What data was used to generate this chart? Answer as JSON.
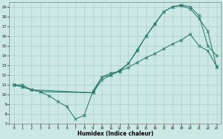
{
  "xlabel": "Humidex (Indice chaleur)",
  "ylabel": "",
  "bg_color": "#cce8e4",
  "line_color": "#2d7a6e",
  "grid_color": "#aaccc8",
  "xlim": [
    -0.5,
    23.5
  ],
  "ylim": [
    7,
    19.5
  ],
  "xticks": [
    0,
    1,
    2,
    3,
    4,
    5,
    6,
    7,
    8,
    9,
    10,
    11,
    12,
    13,
    14,
    15,
    16,
    17,
    18,
    19,
    20,
    21,
    22,
    23
  ],
  "yticks": [
    7,
    8,
    9,
    10,
    11,
    12,
    13,
    14,
    15,
    16,
    17,
    18,
    19
  ],
  "line1_x": [
    0,
    1,
    2,
    3,
    4,
    5,
    6,
    7,
    8,
    9,
    10,
    11,
    12,
    13,
    14,
    15,
    16,
    17,
    18,
    19,
    20,
    21,
    22,
    23
  ],
  "line1_y": [
    11,
    11,
    10.5,
    10.3,
    9.9,
    9.3,
    8.8,
    7.5,
    7.9,
    10.4,
    11.8,
    12.2,
    12.4,
    13.2,
    14.5,
    16.0,
    17.3,
    18.5,
    19.0,
    19.2,
    19.0,
    18.1,
    15.0,
    14.0
  ],
  "line2_x": [
    0,
    1,
    2,
    3,
    9,
    10,
    11,
    12,
    13,
    14,
    15,
    16,
    17,
    18,
    19,
    20,
    21,
    22,
    23
  ],
  "line2_y": [
    11,
    10.8,
    10.5,
    10.3,
    10.2,
    11.8,
    12.0,
    12.4,
    12.8,
    13.3,
    13.8,
    14.2,
    14.7,
    15.2,
    15.6,
    16.2,
    15.0,
    14.5,
    12.9
  ],
  "line3_x": [
    0,
    1,
    2,
    9,
    10,
    11,
    12,
    13,
    14,
    15,
    16,
    17,
    18,
    19,
    20,
    21,
    22,
    23
  ],
  "line3_y": [
    11,
    10.8,
    10.5,
    10.2,
    11.5,
    12.0,
    12.5,
    13.2,
    14.6,
    16.0,
    17.2,
    18.5,
    19.0,
    19.1,
    18.8,
    17.8,
    16.5,
    12.8
  ]
}
